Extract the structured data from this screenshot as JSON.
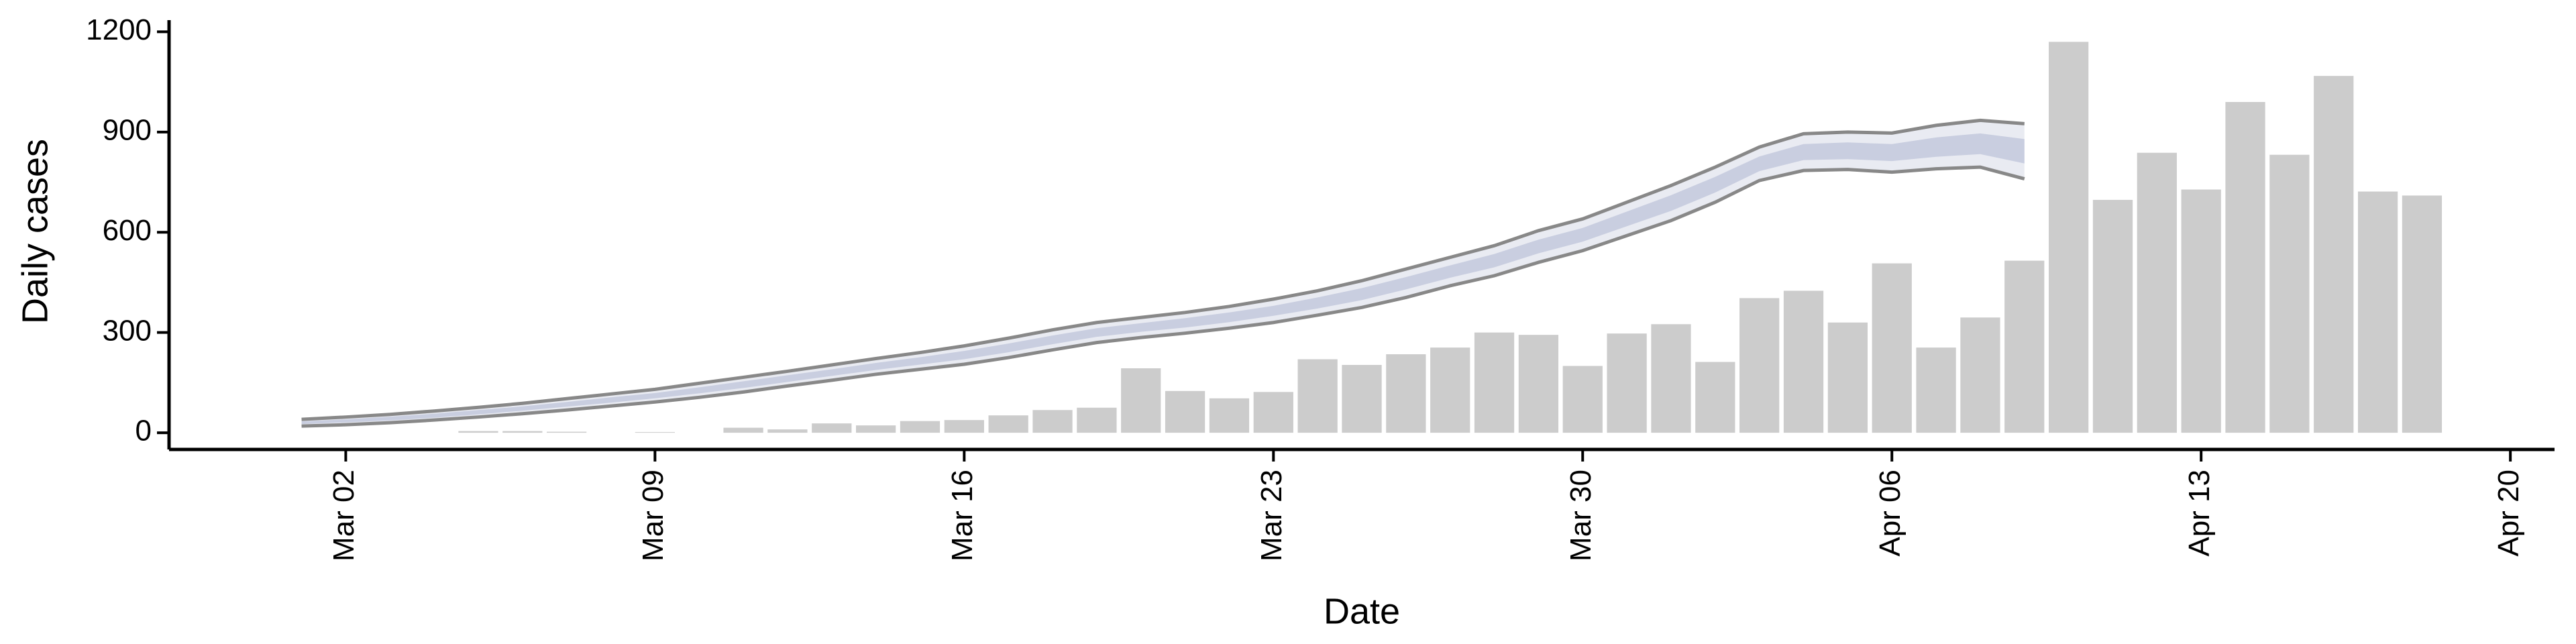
{
  "chart_data": {
    "type": "bar",
    "x_label": "Date",
    "y_label": "Daily cases",
    "xlim": [
      "Feb 27",
      "Apr 21"
    ],
    "xticks": [
      "Mar 02",
      "Mar 09",
      "Mar 16",
      "Mar 23",
      "Mar 30",
      "Apr 06",
      "Apr 13",
      "Apr 20"
    ],
    "ylim": [
      -50,
      1235
    ],
    "yticks": [
      0,
      300,
      600,
      900,
      1200
    ],
    "grid": false,
    "x": [
      "Mar 05",
      "Mar 06",
      "Mar 07",
      "Mar 09",
      "Mar 11",
      "Mar 12",
      "Mar 13",
      "Mar 14",
      "Mar 15",
      "Mar 16",
      "Mar 17",
      "Mar 18",
      "Mar 19",
      "Mar 20",
      "Mar 21",
      "Mar 22",
      "Mar 23",
      "Mar 24",
      "Mar 25",
      "Mar 26",
      "Mar 27",
      "Mar 28",
      "Mar 29",
      "Mar 30",
      "Mar 31",
      "Apr 01",
      "Apr 02",
      "Apr 03",
      "Apr 04",
      "Apr 05",
      "Apr 06",
      "Apr 07",
      "Apr 08",
      "Apr 09",
      "Apr 10",
      "Apr 11",
      "Apr 12",
      "Apr 13",
      "Apr 14",
      "Apr 15",
      "Apr 16",
      "Apr 17",
      "Apr 18"
    ],
    "values": [
      5,
      5,
      3,
      2,
      15,
      10,
      28,
      22,
      35,
      38,
      52,
      68,
      75,
      193,
      125,
      103,
      122,
      220,
      203,
      235,
      255,
      300,
      293,
      200,
      297,
      325,
      212,
      403,
      425,
      330,
      507,
      255,
      345,
      515,
      1170,
      697,
      838,
      728,
      990,
      832,
      1068,
      722,
      710
    ],
    "color": "#cccccc",
    "band": {
      "x": [
        "Mar 01",
        "Mar 02",
        "Mar 03",
        "Mar 04",
        "Mar 05",
        "Mar 06",
        "Mar 07",
        "Mar 08",
        "Mar 09",
        "Mar 10",
        "Mar 11",
        "Mar 12",
        "Mar 13",
        "Mar 14",
        "Mar 15",
        "Mar 16",
        "Mar 17",
        "Mar 18",
        "Mar 19",
        "Mar 20",
        "Mar 21",
        "Mar 22",
        "Mar 23",
        "Mar 24",
        "Mar 25",
        "Mar 26",
        "Mar 27",
        "Mar 28",
        "Mar 29",
        "Mar 30",
        "Mar 31",
        "Apr 01",
        "Apr 02",
        "Apr 03",
        "Apr 04",
        "Apr 05",
        "Apr 06",
        "Apr 07",
        "Apr 08",
        "Apr 09"
      ],
      "outer_lower": [
        20,
        24,
        30,
        38,
        47,
        57,
        68,
        80,
        92,
        106,
        122,
        140,
        157,
        175,
        190,
        205,
        225,
        248,
        270,
        285,
        298,
        313,
        330,
        352,
        375,
        405,
        440,
        470,
        510,
        545,
        590,
        635,
        690,
        755,
        785,
        788,
        780,
        790,
        795,
        760
      ],
      "outer_upper": [
        40,
        47,
        55,
        65,
        76,
        88,
        102,
        116,
        130,
        148,
        166,
        184,
        203,
        222,
        240,
        260,
        283,
        308,
        330,
        345,
        360,
        378,
        400,
        425,
        455,
        490,
        525,
        560,
        605,
        640,
        690,
        740,
        795,
        855,
        895,
        900,
        897,
        920,
        935,
        925
      ],
      "inner_lower": [
        26,
        31,
        37,
        45,
        55,
        66,
        78,
        90,
        103,
        118,
        134,
        152,
        170,
        188,
        204,
        220,
        241,
        265,
        287,
        302,
        315,
        331,
        350,
        372,
        397,
        429,
        464,
        495,
        537,
        572,
        618,
        664,
        719,
        783,
        816,
        819,
        813,
        826,
        834,
        806
      ],
      "inner_upper": [
        34,
        40,
        48,
        57,
        68,
        79,
        92,
        106,
        119,
        136,
        154,
        172,
        190,
        209,
        226,
        245,
        267,
        291,
        313,
        328,
        343,
        360,
        380,
        405,
        433,
        466,
        501,
        535,
        578,
        613,
        662,
        711,
        766,
        827,
        864,
        869,
        864,
        884,
        896,
        879
      ],
      "outer_color": "#e9ebf2",
      "inner_color": "#c9cee0",
      "line_color": "#888888"
    }
  }
}
